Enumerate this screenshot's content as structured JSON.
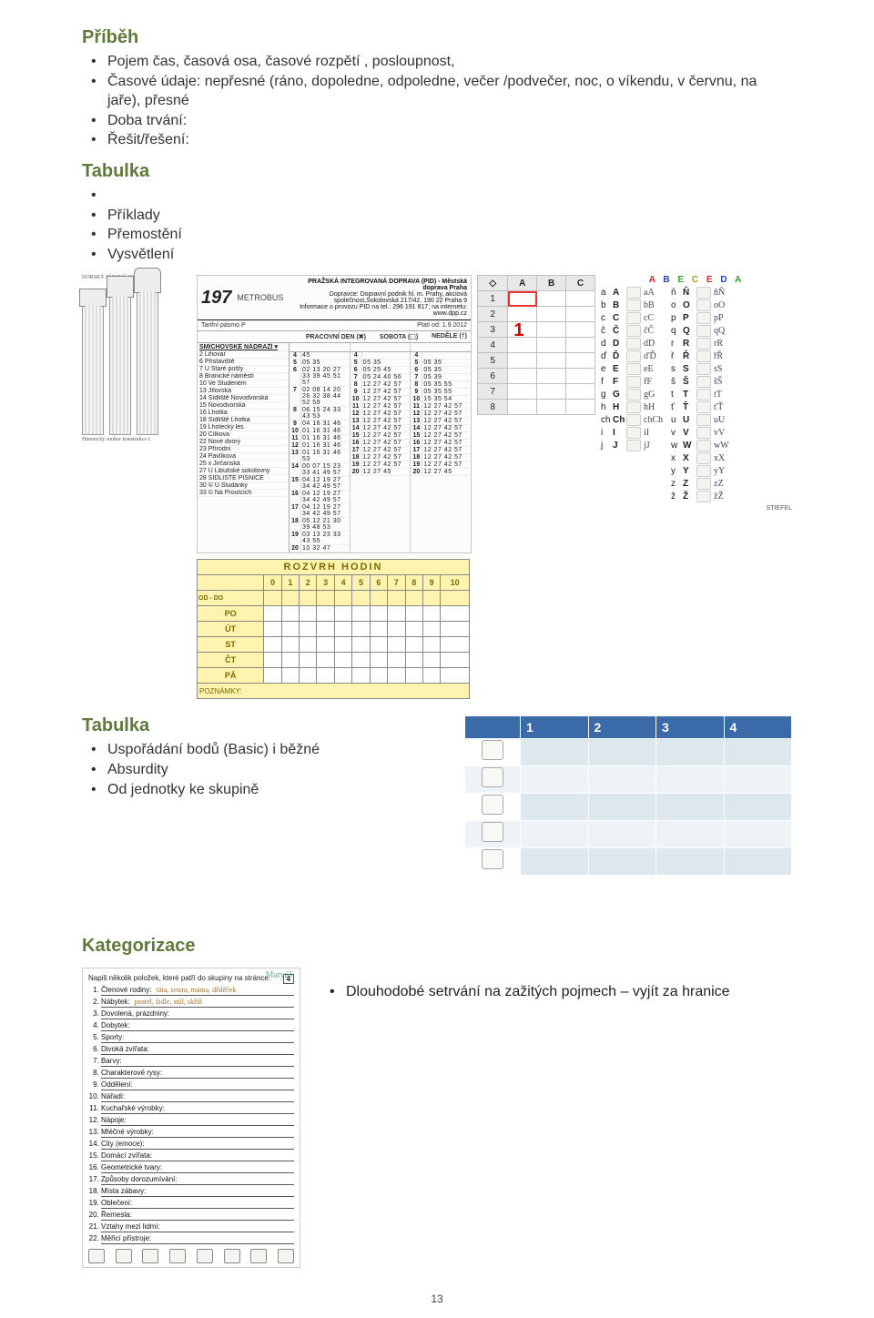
{
  "page_number": "13",
  "sections": {
    "pribeh": {
      "title": "Příběh",
      "items": [
        "Pojem čas, časová osa, časové rozpětí , posloupnost,",
        "Časové údaje: nepřesné (ráno, dopoledne, odpoledne, večer /podvečer, noc, o víkendu, v červnu, na jaře), přesné",
        "Doba trvání:",
        "Řešit/řešení:"
      ]
    },
    "tabulka1": {
      "title": "Tabulka",
      "items": [
        "",
        "Příklady",
        "Přemostění",
        "Vysvětlení"
      ]
    },
    "tabulka2": {
      "title": "Tabulka",
      "items": [
        "Uspořádání bodů (Basic) i běžné",
        "Absurdity",
        "Od jednotky ke skupině"
      ]
    },
    "kategorizace": {
      "title": "Kategorizace",
      "items": [
        "Dlouhodobé setrvání na zažitých pojmech – vyjít za hranice"
      ]
    }
  },
  "columns_figure": {
    "caption_top": "DÓRSKÝ  IÓNSKÝ  KORINTSKÝ",
    "caption_bottom": "Historický soubor konstrukce  I."
  },
  "timetable": {
    "route": "197",
    "metrobus": "METROBUS",
    "pid_line1": "PRAŽSKÁ INTEGROVANÁ DOPRAVA (PID) - Městská doprava Praha",
    "pid_line2": "Dopravce: Dopravní podnik hl. m. Prahy, akciová společnost,Sokolovská 217/42, 190 22 Praha 9",
    "pid_line3": "Informace o provozu PID na tel.: 296 191 817; na internetu: www.dpp.cz",
    "valid": "Platí od: 1.9.2012",
    "tariff": "Tarifní pásmo P",
    "col_work": "PRACOVNÍ DEN (✖)",
    "col_sat": "SOBOTA (⬚)",
    "col_sun": "NEDĚLE (†)",
    "stops": [
      "SMÍCHOVSKÉ NÁDRAŽÍ ▾",
      "Lihovar",
      "Přístaviště",
      "U Staré pošty",
      "Branické náměstí",
      "Ve Studeném",
      "Jílovská",
      "Sídliště Novodvorská",
      "Novodvorská",
      "Lhotka",
      "Sídliště Lhotka",
      "Lhotecký les",
      "Cílkova",
      "Nové dvory",
      "Přírodní",
      "Pavlíkova",
      "x Jirčanská",
      "U Libušské sokolovny",
      "SÍDLIŠTĚ PÍSNICE",
      "© U Studánky",
      "© Na Proutcích"
    ],
    "stop_nums": [
      "",
      "2",
      "6",
      "7",
      "8",
      "10",
      "13",
      "14",
      "15",
      "16",
      "18",
      "19",
      "20",
      "22",
      "23",
      "24",
      "25",
      "27",
      "28",
      "30",
      "33"
    ],
    "rows": [
      {
        "h": "4",
        "w": "45",
        "s": "",
        "n": ""
      },
      {
        "h": "5",
        "w": "05 35",
        "s": "05 35",
        "n": "05 35"
      },
      {
        "h": "6",
        "w": "02 13 20 27 33 39 45 51 57",
        "s": "05 25 45",
        "n": "05 35"
      },
      {
        "h": "7",
        "w": "02 08 14 20 26 32 38 44 52 59",
        "s": "05 24 40 56",
        "n": "05 39"
      },
      {
        "h": "8",
        "w": "06 15 24 33 43 53",
        "s": "12 27 42 57",
        "n": "05 35 55"
      },
      {
        "h": "9",
        "w": "04 16 31 46",
        "s": "12 27 42 57",
        "n": "05 35 55"
      },
      {
        "h": "10",
        "w": "01 16 31 46",
        "s": "12 27 42 57",
        "n": "15 35 54"
      },
      {
        "h": "11",
        "w": "01 16 31 46",
        "s": "12 27 42 57",
        "n": "12 27 42 57"
      },
      {
        "h": "12",
        "w": "01 16 31 46",
        "s": "12 27 42 57",
        "n": "12 27 42 57"
      },
      {
        "h": "13",
        "w": "01 16 31 46 53",
        "s": "12 27 42 57",
        "n": "12 27 42 57"
      },
      {
        "h": "14",
        "w": "00 07 15 23 33 41 49 57",
        "s": "12 27 42 57",
        "n": "12 27 42 57"
      },
      {
        "h": "15",
        "w": "04 12 19 27 34 42 49 57",
        "s": "12 27 42 57",
        "n": "12 27 42 57"
      },
      {
        "h": "16",
        "w": "04 12 19 27 34 42 49 57",
        "s": "12 27 42 57",
        "n": "12 27 42 57"
      },
      {
        "h": "17",
        "w": "04 12 19 27 34 42 49 57",
        "s": "12 27 42 57",
        "n": "12 27 42 57"
      },
      {
        "h": "18",
        "w": "05 12 21 30 39 48 53",
        "s": "12 27 42 57",
        "n": "12 27 42 57"
      },
      {
        "h": "19",
        "w": "03 13 23 33 43 55",
        "s": "12 27 42 57",
        "n": "12 27 42 57"
      },
      {
        "h": "20",
        "w": "10 32 47",
        "s": "12 27 45",
        "n": "12 27 45"
      }
    ]
  },
  "rozvrh": {
    "title": "ROZVRH HODIN",
    "columns": [
      "",
      "0",
      "1",
      "2",
      "3",
      "4",
      "5",
      "6",
      "7",
      "8",
      "9",
      "10"
    ],
    "sub": "OD - DO",
    "days": [
      "PO",
      "ÚT",
      "ST",
      "ČT",
      "PÁ"
    ],
    "footer": "POZNÁMKY:"
  },
  "spreadsheet": {
    "cols": [
      "",
      "A",
      "B",
      "C"
    ],
    "rows": 8,
    "big_one": "1",
    "hint_icon": "◇"
  },
  "alphabet": {
    "title_letters": [
      "A",
      "B",
      "E",
      "C",
      "E",
      "D",
      "A"
    ],
    "title_colors": [
      "r",
      "b",
      "g",
      "y",
      "r",
      "b",
      "g"
    ],
    "left": [
      [
        "a",
        "A",
        "aA"
      ],
      [
        "b",
        "B",
        "bB"
      ],
      [
        "c",
        "C",
        "cC"
      ],
      [
        "č",
        "Č",
        "čČ"
      ],
      [
        "d",
        "D",
        "dD"
      ],
      [
        "ď",
        "Ď",
        "ďĎ"
      ],
      [
        "e",
        "E",
        "eE"
      ],
      [
        "f",
        "F",
        "fF"
      ],
      [
        "g",
        "G",
        "gG"
      ],
      [
        "h",
        "H",
        "hH"
      ],
      [
        "ch",
        "Ch",
        "chCh"
      ],
      [
        "i",
        "I",
        "iI"
      ],
      [
        "j",
        "J",
        "jJ"
      ]
    ],
    "right": [
      [
        "ň",
        "Ň",
        "ňŇ"
      ],
      [
        "o",
        "O",
        "oO"
      ],
      [
        "p",
        "P",
        "pP"
      ],
      [
        "q",
        "Q",
        "qQ"
      ],
      [
        "r",
        "R",
        "rR"
      ],
      [
        "ř",
        "Ř",
        "řŘ"
      ],
      [
        "s",
        "S",
        "sS"
      ],
      [
        "š",
        "Š",
        "šŠ"
      ],
      [
        "t",
        "T",
        "tT"
      ],
      [
        "ť",
        "Ť",
        "ťŤ"
      ],
      [
        "u",
        "U",
        "uU"
      ],
      [
        "v",
        "V",
        "vV"
      ],
      [
        "w",
        "W",
        "wW"
      ],
      [
        "x",
        "X",
        "xX"
      ],
      [
        "y",
        "Y",
        "yY"
      ],
      [
        "z",
        "Z",
        "zZ"
      ],
      [
        "ž",
        "Ž",
        "žŽ"
      ]
    ],
    "brand": "STIEFEL"
  },
  "blue_table": {
    "headers": [
      "",
      "1",
      "2",
      "3",
      "4"
    ],
    "row_count": 5
  },
  "handout": {
    "student": "Matyáš",
    "instr": "Napiš několik položek, které patří do skupiny na stránce.",
    "page_badge": "4",
    "items": [
      {
        "label": "Členové rodiny:",
        "hand": "táta, sestra, máma, děděček"
      },
      {
        "label": "Nábytek:",
        "hand": "postel, židle, stůl, skříň"
      },
      {
        "label": "Dovolená, prázdniny:",
        "hand": ""
      },
      {
        "label": "Dobytek:",
        "hand": ""
      },
      {
        "label": "Sporty:",
        "hand": ""
      },
      {
        "label": "Divoká zvířata:",
        "hand": ""
      },
      {
        "label": "Barvy:",
        "hand": ""
      },
      {
        "label": "Charakterové rysy:",
        "hand": ""
      },
      {
        "label": "Oddělení:",
        "hand": ""
      },
      {
        "label": "Nářadí:",
        "hand": ""
      },
      {
        "label": "Kuchařské výrobky:",
        "hand": ""
      },
      {
        "label": "Nápoje:",
        "hand": ""
      },
      {
        "label": "Mléčné výrobky:",
        "hand": ""
      },
      {
        "label": "City (emoce):",
        "hand": ""
      },
      {
        "label": "Domácí zvířata:",
        "hand": ""
      },
      {
        "label": "Geometrické tvary:",
        "hand": ""
      },
      {
        "label": "Způsoby dorozumívání:",
        "hand": ""
      },
      {
        "label": "Místa zábavy:",
        "hand": ""
      },
      {
        "label": "Oblečení:",
        "hand": ""
      },
      {
        "label": "Řemesla:",
        "hand": ""
      },
      {
        "label": "Vztahy mezi lidmi:",
        "hand": ""
      },
      {
        "label": "Měřicí přístroje:",
        "hand": ""
      }
    ]
  }
}
